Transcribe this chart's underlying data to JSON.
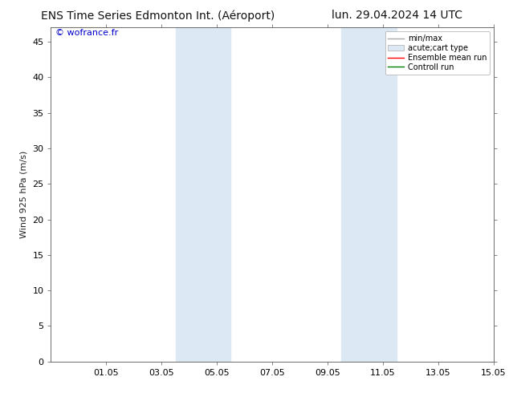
{
  "title_left": "ENS Time Series Edmonton Int. (Aéroport)",
  "title_right": "lun. 29.04.2024 14 UTC",
  "ylabel": "Wind 925 hPa (m/s)",
  "watermark": "© wofrance.fr",
  "ylim": [
    0,
    47
  ],
  "yticks": [
    0,
    5,
    10,
    15,
    20,
    25,
    30,
    35,
    40,
    45
  ],
  "xlim_days": [
    0,
    16
  ],
  "xtick_labels": [
    "01.05",
    "03.05",
    "05.05",
    "07.05",
    "09.05",
    "11.05",
    "13.05",
    "15.05"
  ],
  "xtick_positions": [
    2,
    4,
    6,
    8,
    10,
    12,
    14,
    16
  ],
  "bg_color": "#ffffff",
  "plot_bg_color": "#ffffff",
  "shade_regions": [
    {
      "xmin": 4.5,
      "xmax": 6.5,
      "color": "#dce9f5"
    },
    {
      "xmin": 10.5,
      "xmax": 12.5,
      "color": "#dce9f5"
    }
  ],
  "legend_entries": [
    {
      "label": "min/max",
      "color": "#aaaaaa",
      "style": "line",
      "lw": 1.0
    },
    {
      "label": "acute;cart type",
      "color": "#dce9f5",
      "style": "fill"
    },
    {
      "label": "Ensemble mean run",
      "color": "#ff0000",
      "style": "line",
      "lw": 1.0
    },
    {
      "label": "Controll run",
      "color": "#008000",
      "style": "line",
      "lw": 1.0
    }
  ],
  "watermark_color": "#0000cc",
  "font_size": 8,
  "title_fontsize": 10,
  "legend_fontsize": 7
}
